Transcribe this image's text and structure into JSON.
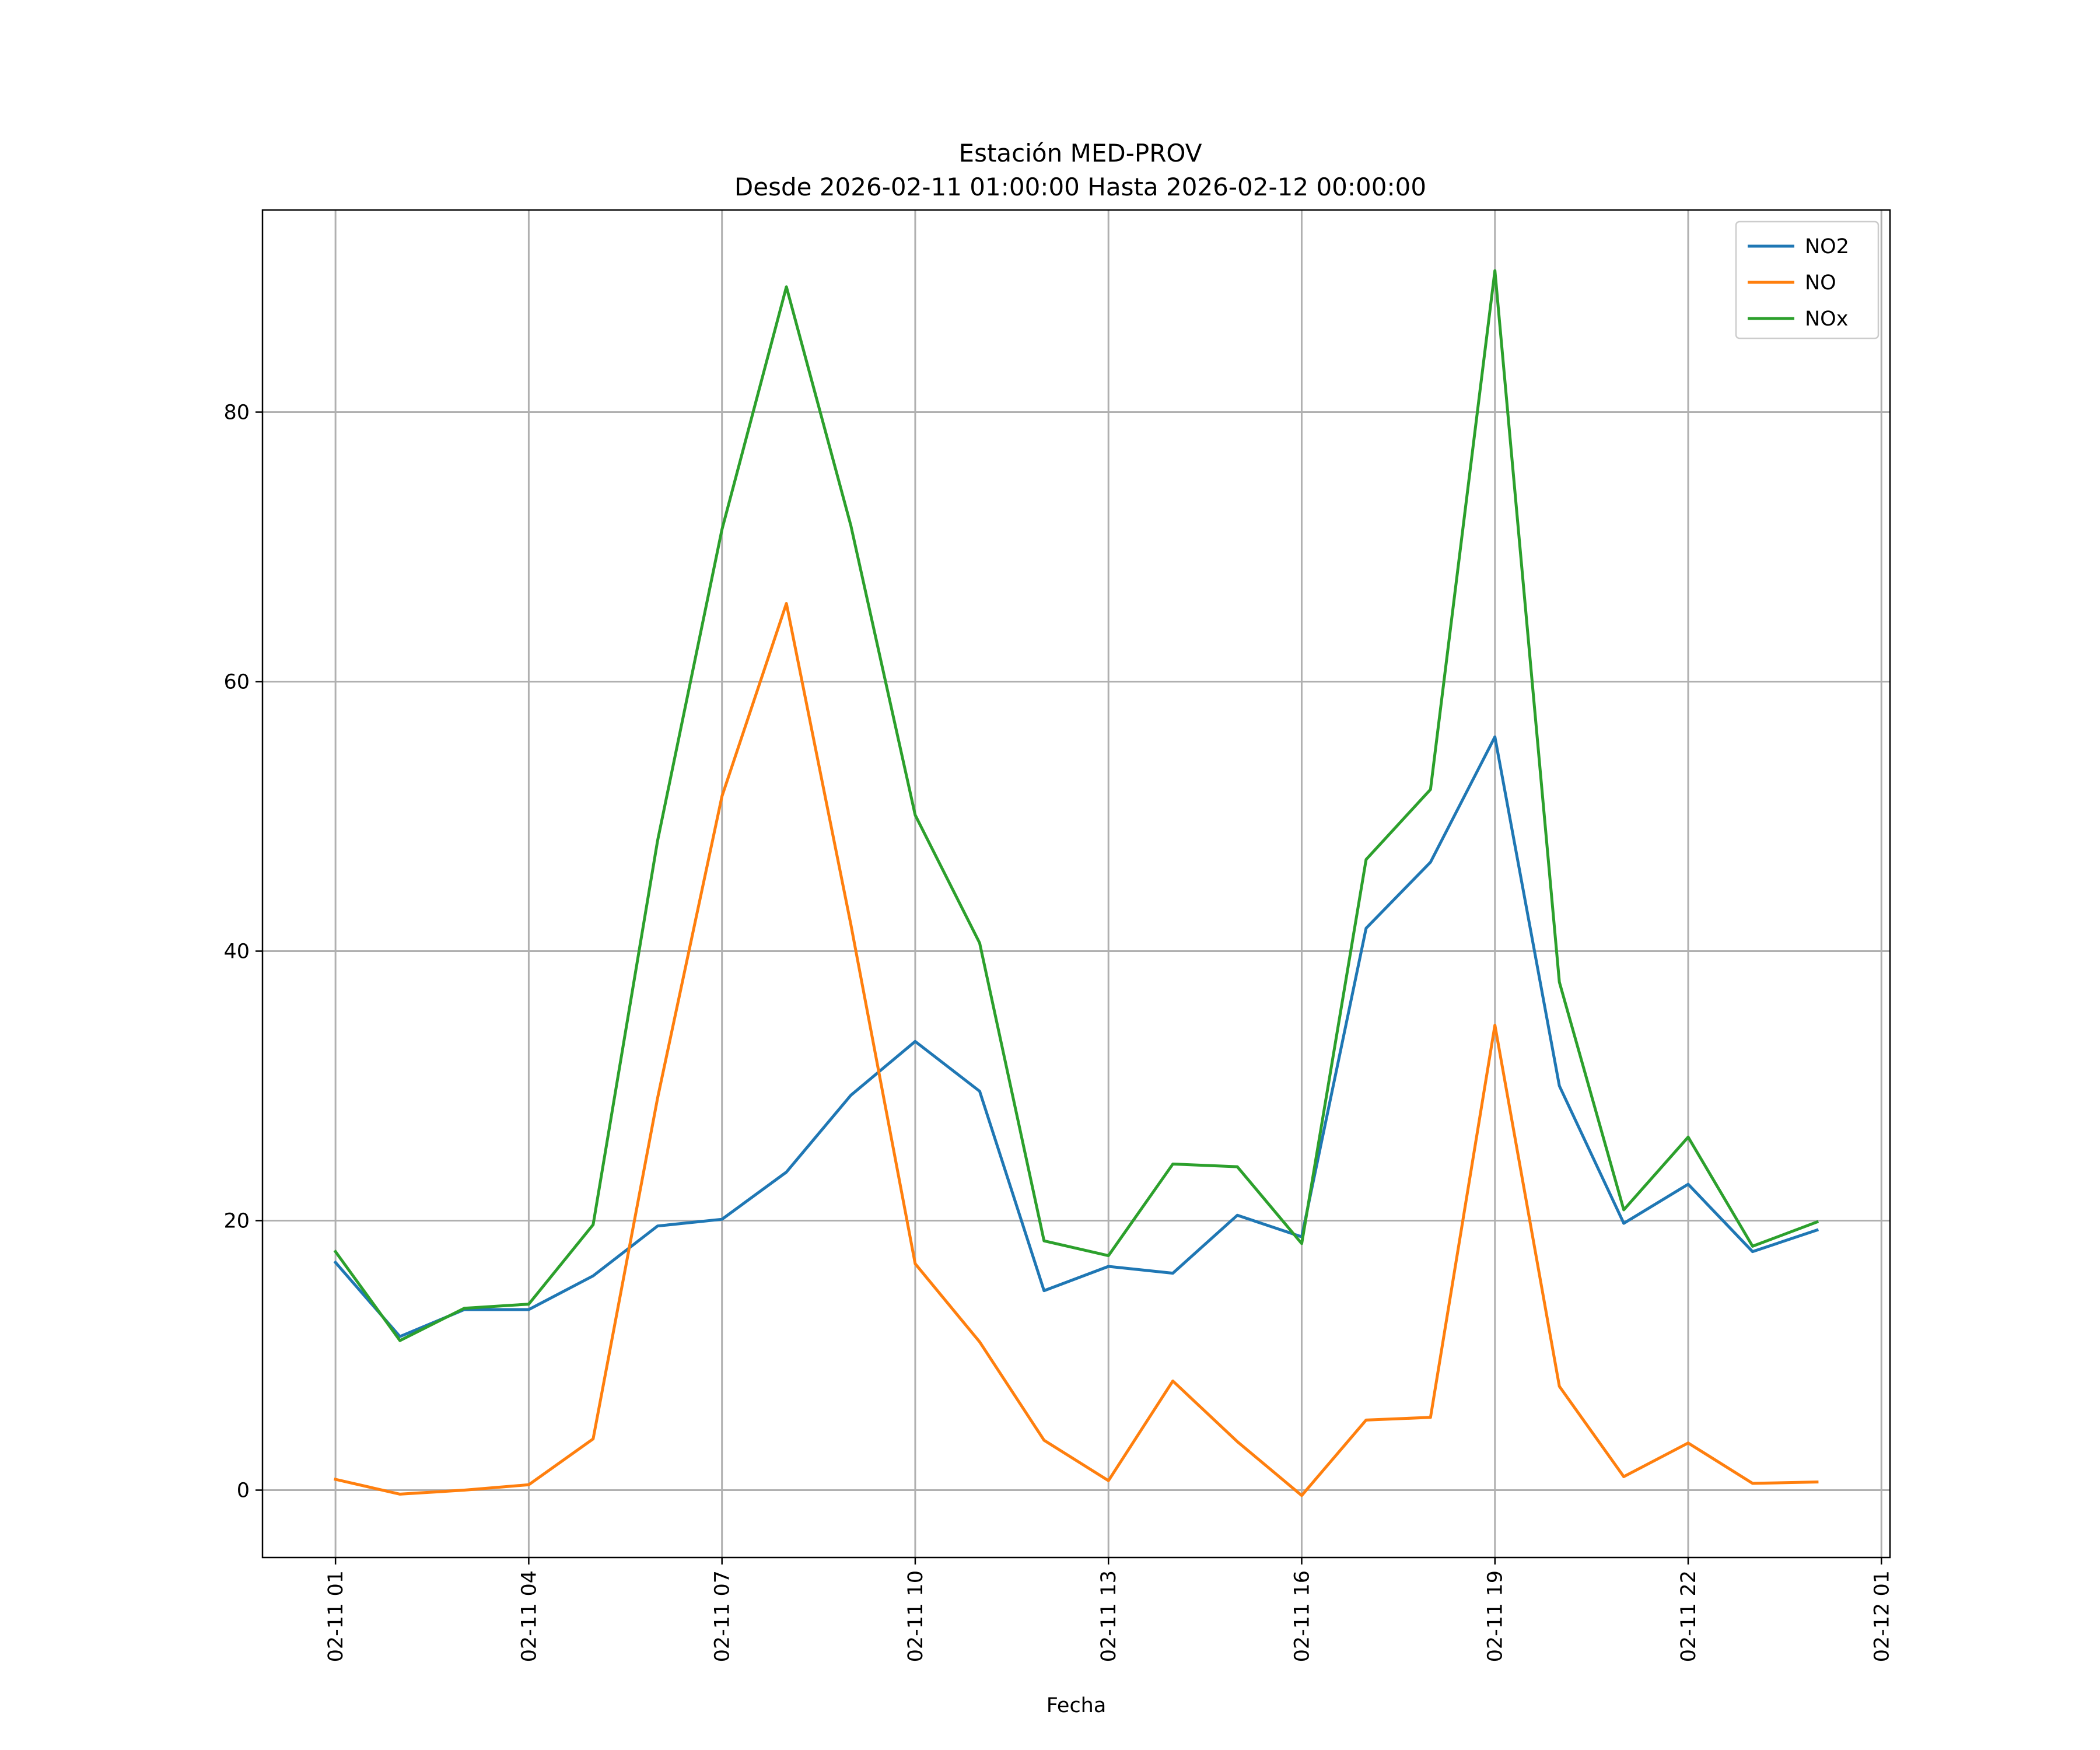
{
  "chart_data": {
    "type": "line",
    "title": "Estación MED-PROV",
    "subtitle": "Desde 2026-02-11 01:00:00 Hasta 2026-02-12 00:00:00",
    "xlabel": "Fecha",
    "ylabel": "",
    "x": [
      "2026-02-11 01:00",
      "2026-02-11 02:00",
      "2026-02-11 03:00",
      "2026-02-11 04:00",
      "2026-02-11 05:00",
      "2026-02-11 06:00",
      "2026-02-11 07:00",
      "2026-02-11 08:00",
      "2026-02-11 09:00",
      "2026-02-11 10:00",
      "2026-02-11 11:00",
      "2026-02-11 12:00",
      "2026-02-11 13:00",
      "2026-02-11 14:00",
      "2026-02-11 15:00",
      "2026-02-11 16:00",
      "2026-02-11 17:00",
      "2026-02-11 18:00",
      "2026-02-11 19:00",
      "2026-02-11 20:00",
      "2026-02-11 21:00",
      "2026-02-11 22:00",
      "2026-02-11 23:00",
      "2026-02-12 00:00"
    ],
    "xlim": [
      "2026-02-10 23:52",
      "2026-02-12 01:08"
    ],
    "ylim": [
      -5,
      95
    ],
    "x_ticks": [
      {
        "at": "2026-02-11 01:00",
        "label": "02-11 01"
      },
      {
        "at": "2026-02-11 04:00",
        "label": "02-11 04"
      },
      {
        "at": "2026-02-11 07:00",
        "label": "02-11 07"
      },
      {
        "at": "2026-02-11 10:00",
        "label": "02-11 10"
      },
      {
        "at": "2026-02-11 13:00",
        "label": "02-11 13"
      },
      {
        "at": "2026-02-11 16:00",
        "label": "02-11 16"
      },
      {
        "at": "2026-02-11 19:00",
        "label": "02-11 19"
      },
      {
        "at": "2026-02-11 22:00",
        "label": "02-11 22"
      },
      {
        "at": "2026-02-12 01:00",
        "label": "02-12 01"
      }
    ],
    "y_ticks": [
      {
        "at": 0,
        "label": "0"
      },
      {
        "at": 20,
        "label": "20"
      },
      {
        "at": 40,
        "label": "40"
      },
      {
        "at": 60,
        "label": "60"
      },
      {
        "at": 80,
        "label": "80"
      }
    ],
    "grid": true,
    "legend": "top-right",
    "series": [
      {
        "name": "NO2",
        "color": "#1f77b4",
        "values": [
          16.9,
          11.4,
          13.4,
          13.4,
          15.9,
          19.6,
          20.1,
          23.6,
          29.3,
          33.3,
          29.6,
          14.8,
          16.6,
          16.1,
          20.4,
          18.8,
          41.7,
          46.6,
          55.9,
          30.0,
          19.8,
          22.7,
          17.7,
          19.3
        ]
      },
      {
        "name": "NO",
        "color": "#ff7f0e",
        "values": [
          0.8,
          -0.3,
          0.0,
          0.4,
          3.8,
          29.1,
          51.5,
          65.8,
          42.0,
          16.8,
          11.0,
          3.7,
          0.7,
          8.1,
          3.6,
          -0.4,
          5.2,
          5.4,
          34.5,
          7.7,
          1.0,
          3.5,
          0.5,
          0.6
        ]
      },
      {
        "name": "NOx",
        "color": "#2ca02c",
        "values": [
          17.7,
          11.1,
          13.5,
          13.8,
          19.7,
          48.2,
          71.3,
          89.3,
          71.6,
          50.1,
          40.6,
          18.5,
          17.4,
          24.2,
          24.0,
          18.3,
          46.8,
          52.0,
          90.5,
          37.7,
          20.8,
          26.2,
          18.1,
          19.9
        ]
      }
    ]
  }
}
